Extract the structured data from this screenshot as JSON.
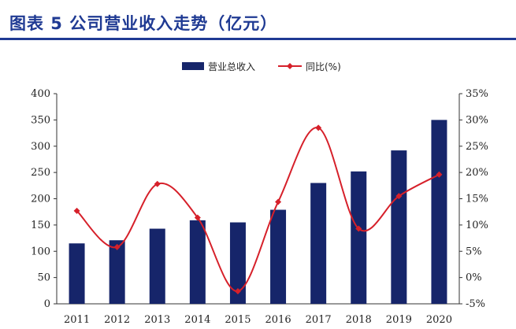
{
  "figure": {
    "title": "图表 5 公司营业收入走势（亿元）"
  },
  "chart_data": {
    "type": "bar",
    "categories": [
      "2011",
      "2012",
      "2013",
      "2014",
      "2015",
      "2016",
      "2017",
      "2018",
      "2019",
      "2020"
    ],
    "series": [
      {
        "name": "营业总收入",
        "type": "bar",
        "axis": "left",
        "color": "#16256a",
        "values": [
          115,
          121,
          143,
          159,
          155,
          179,
          230,
          252,
          292,
          350
        ]
      },
      {
        "name": "同比(%)",
        "type": "line",
        "axis": "right",
        "color": "#d6202a",
        "values": [
          12.7,
          5.8,
          17.8,
          11.4,
          -2.6,
          14.4,
          28.5,
          9.3,
          15.5,
          19.6
        ]
      }
    ],
    "y_left": {
      "range": [
        0,
        400
      ],
      "ticks": [
        0,
        50,
        100,
        150,
        200,
        250,
        300,
        350,
        400
      ],
      "tick_labels": [
        "0",
        "50",
        "100",
        "150",
        "200",
        "250",
        "300",
        "350",
        "400"
      ]
    },
    "y_right": {
      "range": [
        -5,
        35
      ],
      "ticks": [
        -5,
        0,
        5,
        10,
        15,
        20,
        25,
        30,
        35
      ],
      "tick_labels": [
        "-5%",
        "0%",
        "5%",
        "10%",
        "15%",
        "20%",
        "25%",
        "30%",
        "35%"
      ]
    },
    "xlabel": "",
    "ylabel": "",
    "grid": false,
    "legend_position": "top-center",
    "smooth_line": true
  }
}
